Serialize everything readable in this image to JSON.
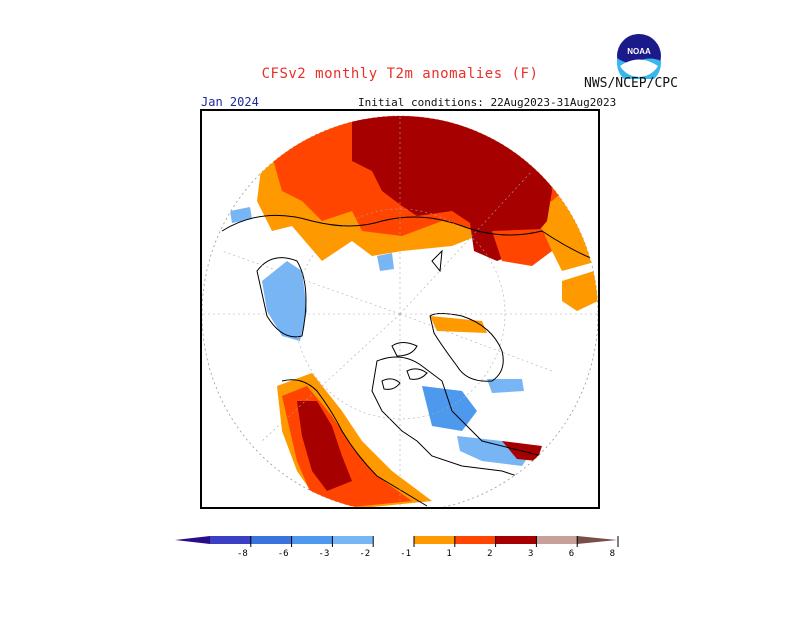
{
  "title": "CFSv2 monthly T2m anomalies (F)",
  "agency": "NWS/NCEP/CPC",
  "logo_text": "NOAA",
  "valid_label": "Jan 2024",
  "initial_conditions": "Initial conditions: 22Aug2023-31Aug2023",
  "colors": {
    "title": "#e8302a",
    "valid_label": "#1c2aa0",
    "warm_1_2": "#ff9900",
    "warm_2_3": "#ff4500",
    "warm_3_6": "#a60000",
    "warm_6_8": "#c8a09a",
    "warm_gt8": "#7a4f48",
    "cool_m1_m2": "#77b5f5",
    "cool_m2_m3": "#4d99ee",
    "cool_m3_m6": "#3a72de",
    "cool_m6_m8": "#3b3fc4",
    "cool_lt_m8": "#2a0c8a"
  },
  "colorbar": {
    "ticks": [
      "-8",
      "-6",
      "-3",
      "-2",
      "-1",
      "1",
      "2",
      "3",
      "6",
      "8"
    ],
    "bins": [
      {
        "label": "<-8",
        "color": "#2a0c8a"
      },
      {
        "label": "-8 to -6",
        "color": "#3b3fc4"
      },
      {
        "label": "-6 to -3",
        "color": "#3a72de"
      },
      {
        "label": "-3 to -2",
        "color": "#4d99ee"
      },
      {
        "label": "-2 to -1",
        "color": "#77b5f5"
      },
      {
        "label": "-1 to 1",
        "color": "#ffffff"
      },
      {
        "label": "1 to 2",
        "color": "#ff9900"
      },
      {
        "label": "2 to 3",
        "color": "#ff4500"
      },
      {
        "label": "3 to 6",
        "color": "#a60000"
      },
      {
        "label": "6 to 8",
        "color": "#c8a09a"
      },
      {
        "label": ">8",
        "color": "#7a4f48"
      }
    ]
  }
}
